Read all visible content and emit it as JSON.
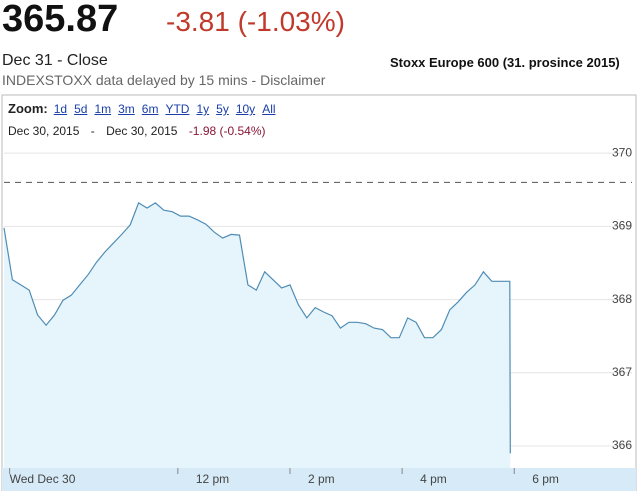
{
  "header": {
    "price": "365.87",
    "change": "-3.81 (-1.03%)",
    "close": "Dec 31 - Close",
    "delay": "INDEXSTOXX data delayed by 15 mins - Disclaimer",
    "caption": "Stoxx Europe 600 (31. prosince 2015)"
  },
  "toolbar": {
    "zoom_label": "Zoom:",
    "zoom_options": [
      "1d",
      "5d",
      "1m",
      "3m",
      "6m",
      "YTD",
      "1y",
      "5y",
      "10y",
      "All"
    ],
    "range_start": "Dec 30, 2015",
    "range_sep": "-",
    "range_end": "Dec 30, 2015",
    "range_change": "-1.98 (-0.54%)"
  },
  "chart_data": {
    "type": "area",
    "x": [
      8.9,
      9.05,
      9.2,
      9.35,
      9.5,
      9.65,
      9.8,
      9.95,
      10.1,
      10.25,
      10.4,
      10.55,
      10.7,
      10.85,
      11.0,
      11.15,
      11.3,
      11.45,
      11.6,
      11.75,
      11.9,
      12.05,
      12.2,
      12.35,
      12.5,
      12.65,
      12.8,
      12.95,
      13.1,
      13.25,
      13.4,
      13.55,
      13.7,
      13.85,
      14.0,
      14.15,
      14.3,
      14.45,
      14.6,
      14.75,
      14.9,
      15.05,
      15.2,
      15.35,
      15.5,
      15.65,
      15.8,
      15.95,
      16.1,
      16.25,
      16.4,
      16.55,
      16.7,
      16.85,
      17.0,
      17.15,
      17.3,
      17.45,
      17.6,
      17.92,
      17.93
    ],
    "values": [
      368.98,
      368.27,
      368.2,
      368.13,
      367.79,
      367.65,
      367.79,
      367.99,
      368.06,
      368.2,
      368.34,
      368.51,
      368.65,
      368.77,
      368.89,
      369.02,
      369.32,
      369.25,
      369.32,
      369.22,
      369.2,
      369.14,
      369.14,
      369.09,
      369.03,
      368.92,
      368.84,
      368.89,
      368.88,
      368.2,
      368.13,
      368.38,
      368.27,
      368.16,
      368.2,
      367.93,
      367.75,
      367.89,
      367.83,
      367.78,
      367.61,
      367.69,
      367.69,
      367.67,
      367.61,
      367.59,
      367.48,
      367.48,
      367.75,
      367.69,
      367.48,
      367.48,
      367.59,
      367.86,
      367.97,
      368.1,
      368.2,
      368.38,
      368.25,
      368.25,
      365.9
    ],
    "color": "#4f8db5",
    "fill": "#e6f4fb",
    "xlim": [
      8.9,
      20.1
    ],
    "ylim": [
      365.7,
      370.07
    ],
    "xticks": [
      {
        "value": 9,
        "label": "Wed Dec 30"
      },
      {
        "value": 12,
        "label": "12 pm"
      },
      {
        "value": 14,
        "label": "2 pm"
      },
      {
        "value": 16,
        "label": "4 pm"
      },
      {
        "value": 18,
        "label": "6 pm"
      }
    ],
    "yticks": [
      366,
      367,
      368,
      369,
      370
    ],
    "reference_line": 369.6,
    "grid": true
  }
}
